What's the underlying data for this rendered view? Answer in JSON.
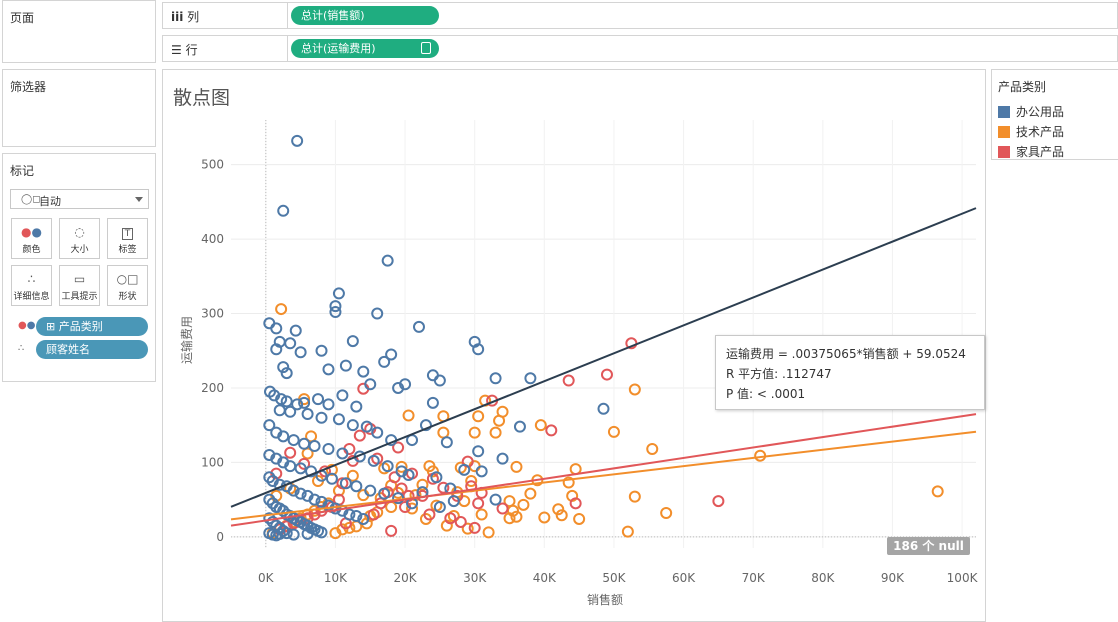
{
  "left_panels": {
    "pages_title": "页面",
    "filters_title": "筛选器",
    "marks_title": "标记",
    "mark_type": "自动",
    "mark_buttons": [
      {
        "label": "颜色",
        "icon": "color-icon"
      },
      {
        "label": "大小",
        "icon": "size-icon"
      },
      {
        "label": "标签",
        "icon": "label-icon"
      },
      {
        "label": "详细信息",
        "icon": "detail-icon"
      },
      {
        "label": "工具提示",
        "icon": "tooltip-icon"
      },
      {
        "label": "形状",
        "icon": "shape-icon"
      }
    ],
    "mark_pills": [
      {
        "label": "产品类别",
        "role": "color"
      },
      {
        "label": "顾客姓名",
        "role": "detail"
      }
    ]
  },
  "shelves": {
    "columns_label": "列",
    "columns_pill": "总计(销售额)",
    "rows_label": "行",
    "rows_pill": "总计(运输费用)"
  },
  "legend": {
    "title": "产品类别",
    "items": [
      {
        "label": "办公用品",
        "color": "#4e79a7"
      },
      {
        "label": "技术产品",
        "color": "#f28e2b"
      },
      {
        "label": "家具产品",
        "color": "#e15759"
      }
    ]
  },
  "tooltip": {
    "line1": "运输费用 = .00375065*销售额 + 59.0524",
    "line2": "R 平方值: .112747",
    "line3": "P 值: < .0001"
  },
  "null_badge": "186 个 null",
  "chart_data": {
    "type": "scatter",
    "title": "散点图",
    "xlabel": "销售额",
    "ylabel": "运输费用",
    "xlim": [
      -5000,
      102000
    ],
    "ylim": [
      -15,
      560
    ],
    "x_ticks": [
      0,
      10000,
      20000,
      30000,
      40000,
      50000,
      60000,
      70000,
      80000,
      90000,
      100000
    ],
    "x_tick_labels": [
      "0K",
      "10K",
      "20K",
      "30K",
      "40K",
      "50K",
      "60K",
      "70K",
      "80K",
      "90K",
      "100K"
    ],
    "y_ticks": [
      0,
      100,
      200,
      300,
      400,
      500
    ],
    "y_tick_labels": [
      "0",
      "100",
      "200",
      "300",
      "400",
      "500"
    ],
    "grid": true,
    "series": [
      {
        "name": "办公用品",
        "color": "#4e79a7",
        "trend": {
          "slope": 0.00375065,
          "intercept": 59.0524
        },
        "points": [
          [
            4500,
            532
          ],
          [
            2500,
            438
          ],
          [
            17500,
            371
          ],
          [
            10500,
            327
          ],
          [
            10000,
            310
          ],
          [
            10000,
            302
          ],
          [
            16000,
            300
          ],
          [
            500,
            287
          ],
          [
            1500,
            280
          ],
          [
            4300,
            277
          ],
          [
            22000,
            282
          ],
          [
            30000,
            262
          ],
          [
            30500,
            252
          ],
          [
            2000,
            262
          ],
          [
            3500,
            260
          ],
          [
            12500,
            263
          ],
          [
            1500,
            252
          ],
          [
            5000,
            248
          ],
          [
            18000,
            245
          ],
          [
            8000,
            250
          ],
          [
            11500,
            230
          ],
          [
            9000,
            225
          ],
          [
            14000,
            222
          ],
          [
            17000,
            235
          ],
          [
            2500,
            228
          ],
          [
            3000,
            220
          ],
          [
            24000,
            217
          ],
          [
            25000,
            210
          ],
          [
            33000,
            213
          ],
          [
            38000,
            213
          ],
          [
            48500,
            172
          ],
          [
            20000,
            205
          ],
          [
            15000,
            205
          ],
          [
            19000,
            200
          ],
          [
            24000,
            180
          ],
          [
            23000,
            150
          ],
          [
            36500,
            148
          ],
          [
            21000,
            130
          ],
          [
            26000,
            127
          ],
          [
            30500,
            115
          ],
          [
            34000,
            105
          ],
          [
            28500,
            90
          ],
          [
            31000,
            88
          ],
          [
            24500,
            80
          ],
          [
            20500,
            83
          ],
          [
            26500,
            65
          ],
          [
            22500,
            60
          ],
          [
            27000,
            48
          ],
          [
            25000,
            40
          ],
          [
            33000,
            50
          ],
          [
            600,
            195
          ],
          [
            1200,
            190
          ],
          [
            2200,
            185
          ],
          [
            3000,
            182
          ],
          [
            4500,
            178
          ],
          [
            5500,
            180
          ],
          [
            7500,
            185
          ],
          [
            9000,
            178
          ],
          [
            11000,
            190
          ],
          [
            13000,
            175
          ],
          [
            2000,
            170
          ],
          [
            3500,
            168
          ],
          [
            6000,
            165
          ],
          [
            8000,
            160
          ],
          [
            10500,
            158
          ],
          [
            12500,
            150
          ],
          [
            14500,
            148
          ],
          [
            16000,
            140
          ],
          [
            18000,
            130
          ],
          [
            500,
            150
          ],
          [
            1500,
            140
          ],
          [
            2500,
            135
          ],
          [
            4000,
            130
          ],
          [
            5500,
            125
          ],
          [
            7000,
            122
          ],
          [
            9000,
            118
          ],
          [
            11000,
            112
          ],
          [
            13500,
            108
          ],
          [
            15500,
            102
          ],
          [
            17500,
            95
          ],
          [
            19500,
            88
          ],
          [
            500,
            110
          ],
          [
            1500,
            105
          ],
          [
            2500,
            100
          ],
          [
            3500,
            95
          ],
          [
            5000,
            92
          ],
          [
            6500,
            88
          ],
          [
            8000,
            82
          ],
          [
            9500,
            78
          ],
          [
            11500,
            72
          ],
          [
            13000,
            68
          ],
          [
            15000,
            62
          ],
          [
            17000,
            58
          ],
          [
            19000,
            52
          ],
          [
            21000,
            45
          ],
          [
            500,
            80
          ],
          [
            1000,
            75
          ],
          [
            2000,
            70
          ],
          [
            3000,
            68
          ],
          [
            4000,
            62
          ],
          [
            5000,
            58
          ],
          [
            6000,
            55
          ],
          [
            7000,
            50
          ],
          [
            8000,
            47
          ],
          [
            9000,
            42
          ],
          [
            10000,
            38
          ],
          [
            11000,
            35
          ],
          [
            12000,
            30
          ],
          [
            13000,
            28
          ],
          [
            14000,
            24
          ],
          [
            500,
            50
          ],
          [
            1000,
            45
          ],
          [
            1500,
            40
          ],
          [
            2000,
            38
          ],
          [
            2500,
            35
          ],
          [
            3000,
            30
          ],
          [
            3500,
            28
          ],
          [
            4000,
            25
          ],
          [
            4500,
            22
          ],
          [
            5000,
            20
          ],
          [
            5500,
            17
          ],
          [
            6000,
            15
          ],
          [
            6500,
            12
          ],
          [
            7000,
            10
          ],
          [
            7500,
            8
          ],
          [
            8000,
            6
          ],
          [
            500,
            25
          ],
          [
            1000,
            20
          ],
          [
            1500,
            15
          ],
          [
            2000,
            12
          ],
          [
            2500,
            8
          ],
          [
            3000,
            5
          ],
          [
            500,
            5
          ],
          [
            1000,
            3
          ],
          [
            1500,
            2
          ],
          [
            2000,
            4
          ],
          [
            4000,
            3
          ],
          [
            6000,
            4
          ]
        ]
      },
      {
        "name": "技术产品",
        "color": "#f28e2b",
        "trend": {
          "slope": 0.0011,
          "intercept": 29
        },
        "points": [
          [
            2200,
            306
          ],
          [
            96500,
            61
          ],
          [
            71000,
            109
          ],
          [
            55500,
            118
          ],
          [
            53000,
            198
          ],
          [
            53000,
            54
          ],
          [
            57500,
            32
          ],
          [
            52000,
            7
          ],
          [
            50000,
            141
          ],
          [
            44500,
            91
          ],
          [
            43500,
            73
          ],
          [
            45000,
            24
          ],
          [
            42000,
            37
          ],
          [
            42500,
            29
          ],
          [
            39500,
            150
          ],
          [
            40000,
            26
          ],
          [
            39000,
            76
          ],
          [
            36000,
            94
          ],
          [
            36000,
            27
          ],
          [
            35500,
            35
          ],
          [
            35000,
            48
          ],
          [
            35000,
            25
          ],
          [
            34000,
            168
          ],
          [
            33500,
            156
          ],
          [
            33000,
            140
          ],
          [
            31500,
            183
          ],
          [
            30500,
            162
          ],
          [
            30000,
            140
          ],
          [
            30000,
            95
          ],
          [
            29500,
            75
          ],
          [
            28000,
            93
          ],
          [
            27500,
            60
          ],
          [
            27000,
            28
          ],
          [
            25500,
            162
          ],
          [
            25500,
            140
          ],
          [
            24000,
            88
          ],
          [
            23500,
            95
          ],
          [
            22500,
            70
          ],
          [
            21500,
            56
          ],
          [
            20500,
            163
          ],
          [
            19500,
            94
          ],
          [
            19000,
            59
          ],
          [
            18000,
            69
          ],
          [
            17000,
            92
          ],
          [
            16500,
            52
          ],
          [
            16000,
            33
          ],
          [
            15000,
            28
          ],
          [
            14500,
            18
          ],
          [
            13000,
            14
          ],
          [
            12000,
            12
          ],
          [
            11000,
            10
          ],
          [
            10000,
            5
          ],
          [
            9000,
            45
          ],
          [
            8000,
            40
          ],
          [
            7000,
            35
          ],
          [
            6000,
            30
          ],
          [
            5000,
            25
          ],
          [
            4000,
            20
          ],
          [
            3000,
            15
          ],
          [
            2000,
            10
          ],
          [
            1000,
            5
          ],
          [
            6500,
            135
          ],
          [
            5500,
            185
          ],
          [
            6000,
            112
          ],
          [
            9500,
            90
          ],
          [
            12500,
            82
          ],
          [
            14000,
            56
          ],
          [
            21000,
            38
          ],
          [
            23000,
            24
          ],
          [
            26000,
            15
          ],
          [
            29000,
            11
          ],
          [
            32000,
            6
          ],
          [
            38000,
            58
          ],
          [
            1500,
            55
          ],
          [
            3500,
            65
          ],
          [
            7500,
            75
          ],
          [
            10500,
            62
          ],
          [
            18000,
            40
          ],
          [
            24500,
            42
          ],
          [
            28500,
            48
          ],
          [
            31000,
            30
          ],
          [
            37000,
            43
          ],
          [
            44000,
            55
          ]
        ]
      },
      {
        "name": "家具产品",
        "color": "#e15759",
        "trend": {
          "slope": 0.0014,
          "intercept": 22
        },
        "points": [
          [
            52500,
            260
          ],
          [
            49000,
            218
          ],
          [
            43500,
            210
          ],
          [
            41000,
            143
          ],
          [
            44500,
            45
          ],
          [
            65000,
            48
          ],
          [
            32500,
            183
          ],
          [
            31000,
            59
          ],
          [
            29000,
            101
          ],
          [
            29500,
            68
          ],
          [
            27500,
            55
          ],
          [
            30500,
            45
          ],
          [
            25500,
            66
          ],
          [
            24000,
            78
          ],
          [
            22500,
            55
          ],
          [
            21000,
            85
          ],
          [
            20500,
            55
          ],
          [
            19500,
            65
          ],
          [
            18500,
            80
          ],
          [
            17500,
            60
          ],
          [
            16500,
            45
          ],
          [
            15500,
            30
          ],
          [
            14000,
            199
          ],
          [
            12000,
            118
          ],
          [
            11000,
            72
          ],
          [
            10500,
            50
          ],
          [
            9500,
            40
          ],
          [
            8000,
            35
          ],
          [
            7000,
            30
          ],
          [
            6000,
            25
          ],
          [
            5000,
            20
          ],
          [
            4000,
            18
          ],
          [
            3000,
            14
          ],
          [
            2000,
            10
          ],
          [
            15000,
            145
          ],
          [
            13500,
            136
          ],
          [
            12500,
            102
          ],
          [
            16000,
            105
          ],
          [
            19000,
            120
          ],
          [
            3500,
            113
          ],
          [
            5500,
            98
          ],
          [
            8500,
            88
          ],
          [
            1500,
            85
          ],
          [
            20000,
            40
          ],
          [
            23500,
            30
          ],
          [
            26500,
            25
          ],
          [
            28000,
            20
          ],
          [
            30000,
            12
          ],
          [
            34000,
            38
          ],
          [
            11500,
            18
          ],
          [
            18000,
            8
          ]
        ]
      }
    ]
  }
}
